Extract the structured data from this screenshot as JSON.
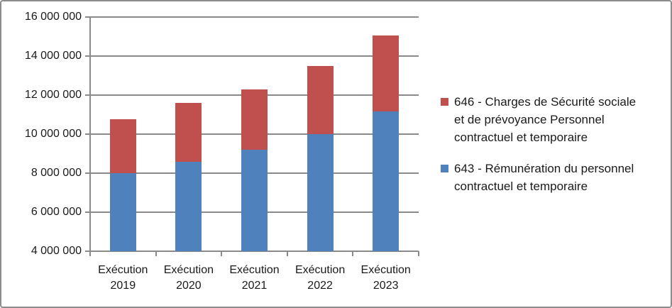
{
  "colors": {
    "border": "#8C8C8C",
    "grid": "#8A8A8A",
    "axis": "#8A8A8A",
    "text": "#1A1A1A",
    "background": "#FFFFFF"
  },
  "chart_data": {
    "type": "bar",
    "stacked": true,
    "title": "",
    "xlabel": "",
    "ylabel": "",
    "grid": true,
    "categories": [
      "Exécution 2019",
      "Exécution 2020",
      "Exécution 2021",
      "Exécution 2022",
      "Exécution 2023"
    ],
    "series": [
      {
        "id": "643",
        "name": "643 - Rémunération du personnel contractuel et temporaire",
        "color": "#4F81BD",
        "values": [
          8000000,
          8600000,
          9200000,
          10000000,
          11150000
        ]
      },
      {
        "id": "646",
        "name": "646 - Charges de Sécurité sociale et de prévoyance Personnel contractuel et temporaire",
        "color": "#C0504D",
        "values": [
          2750000,
          3000000,
          3100000,
          3500000,
          3900000
        ]
      }
    ],
    "stack_totals": [
      10750000,
      11600000,
      12300000,
      13500000,
      15050000
    ],
    "ylim": [
      4000000,
      16000000
    ],
    "ytick_step": 2000000,
    "ytick_labels_top_to_bottom": [
      "16 000 000",
      "14 000 000",
      "12 000 000",
      "10 000 000",
      "8 000 000",
      "6 000 000",
      "4 000 000"
    ],
    "legend": {
      "position": "right",
      "series_order_top_to_bottom": [
        1,
        0
      ]
    }
  }
}
